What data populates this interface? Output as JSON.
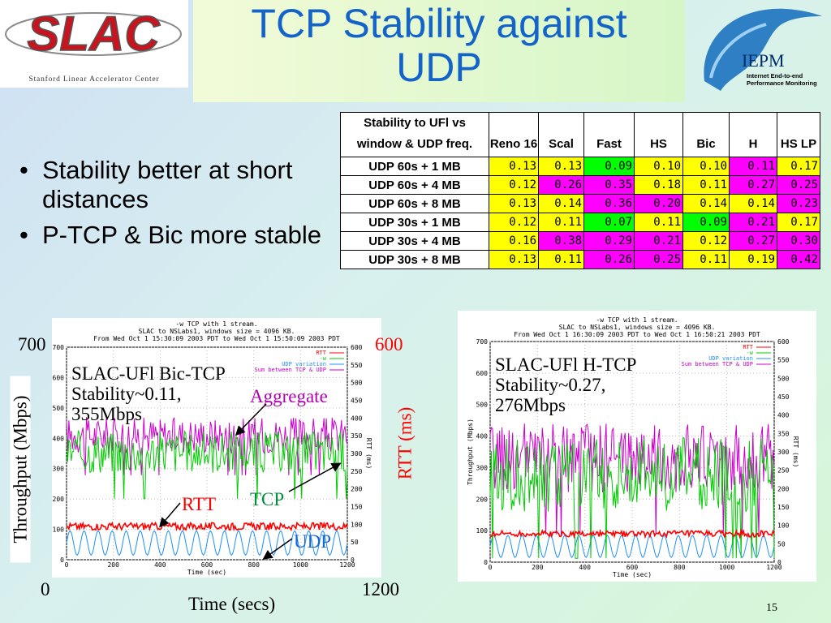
{
  "slide": {
    "title_line1": "TCP Stability against",
    "title_line2": "UDP",
    "page_number": "15",
    "org_logo": {
      "name": "SLAC",
      "subtitle": "Stanford Linear Accelerator Center"
    },
    "iepm_logo": {
      "name": "IEPM",
      "subtitle_line1": "Internet End-to-end",
      "subtitle_line2": "Performance Monitoring"
    },
    "bullets": [
      "Stability better at short distances",
      "P-TCP & Bic more stable"
    ]
  },
  "table": {
    "corner_header": "Stability to UFl vs window & UDP freq.",
    "headers": [
      "Reno 16",
      "Scal",
      "Fast",
      "HS",
      "Bic",
      "H",
      "HS LP"
    ],
    "rows": [
      {
        "label": "UDP 60s + 1 MB",
        "cells": [
          {
            "v": "0.13",
            "c": "y"
          },
          {
            "v": "0.13",
            "c": "y"
          },
          {
            "v": "0.09",
            "c": "g"
          },
          {
            "v": "0.10",
            "c": "y"
          },
          {
            "v": "0.10",
            "c": "y"
          },
          {
            "v": "0.11",
            "c": "m"
          },
          {
            "v": "0.17",
            "c": "y"
          }
        ]
      },
      {
        "label": "UDP 60s + 4 MB",
        "cells": [
          {
            "v": "0.12",
            "c": "y"
          },
          {
            "v": "0.26",
            "c": "m"
          },
          {
            "v": "0.35",
            "c": "m"
          },
          {
            "v": "0.18",
            "c": "y"
          },
          {
            "v": "0.11",
            "c": "y"
          },
          {
            "v": "0.27",
            "c": "m"
          },
          {
            "v": "0.25",
            "c": "m"
          }
        ]
      },
      {
        "label": "UDP 60s  + 8 MB",
        "cells": [
          {
            "v": "0.13",
            "c": "y"
          },
          {
            "v": "0.14",
            "c": "y"
          },
          {
            "v": "0.36",
            "c": "m"
          },
          {
            "v": "0.20",
            "c": "m"
          },
          {
            "v": "0.14",
            "c": "y"
          },
          {
            "v": "0.14",
            "c": "y"
          },
          {
            "v": "0.23",
            "c": "m"
          }
        ]
      },
      {
        "label": "UDP 30s + 1 MB",
        "cells": [
          {
            "v": "0.12",
            "c": "y"
          },
          {
            "v": "0.11",
            "c": "y"
          },
          {
            "v": "0.07",
            "c": "g"
          },
          {
            "v": "0.11",
            "c": "y"
          },
          {
            "v": "0.09",
            "c": "g"
          },
          {
            "v": "0.21",
            "c": "m"
          },
          {
            "v": "0.17",
            "c": "y"
          }
        ]
      },
      {
        "label": "UDP 30s + 4 MB",
        "cells": [
          {
            "v": "0.16",
            "c": "y"
          },
          {
            "v": "0.38",
            "c": "m"
          },
          {
            "v": "0.29",
            "c": "m"
          },
          {
            "v": "0.21",
            "c": "m"
          },
          {
            "v": "0.12",
            "c": "y"
          },
          {
            "v": "0.27",
            "c": "m"
          },
          {
            "v": "0.30",
            "c": "m"
          }
        ]
      },
      {
        "label": "UDP 30s + 8 MB",
        "cells": [
          {
            "v": "0.13",
            "c": "y"
          },
          {
            "v": "0.11",
            "c": "y"
          },
          {
            "v": "0.26",
            "c": "m"
          },
          {
            "v": "0.25",
            "c": "m"
          },
          {
            "v": "0.11",
            "c": "y"
          },
          {
            "v": "0.19",
            "c": "y"
          },
          {
            "v": "0.42",
            "c": "m"
          }
        ]
      }
    ]
  },
  "plot1": {
    "header": [
      "-w TCP with 1 stream.",
      "SLAC to NSLabs1, windows size = 4096 KB.",
      "From Wed Oct  1 15:30:09 2003 PDT to Wed Oct  1 15:50:09 2003 PDT"
    ],
    "legend": [
      "RTT",
      "-w",
      "UDP variation",
      "Sum between TCP & UDP"
    ],
    "ylabel": "Throughput (Mbps)",
    "y2label": "RTT (ms)",
    "xlabel": "Time (sec)",
    "overlay_title": "SLAC-UFl Bic-TCP",
    "overlay_stability": "Stability~0.11,",
    "overlay_rate": "355Mbps",
    "ann_aggregate": "Aggregate",
    "ann_rtt": "RTT",
    "ann_tcp": "TCP",
    "ann_udp": "UDP",
    "outer_y_max": "700",
    "outer_y2_max": "600",
    "outer_x_min": "0",
    "outer_x_max": "1200",
    "outer_ylabel": "Throughput (Mbps)",
    "outer_y2label": "RTT (ms)",
    "outer_xlabel": "Time (secs)"
  },
  "plot2": {
    "header": [
      "-w TCP with 1 stream.",
      "SLAC to NSLabs1, windows size = 4096 KB.",
      "From Wed Oct  1 16:30:09 2003 PDT to Wed Oct  1 16:50:21 2003 PDT"
    ],
    "legend": [
      "RTT",
      "-w",
      "UDP variation",
      "Sum between TCP & UDP"
    ],
    "ylabel": "Throughput (Mbps)",
    "y2label": "RTT (ms)",
    "xlabel": "Time (sec)",
    "overlay_title": "SLAC-UFl H-TCP",
    "overlay_stability": "Stability~0.27,",
    "overlay_rate": "276Mbps"
  },
  "chart_data": [
    {
      "type": "line",
      "title": "-w TCP with 1 stream.",
      "xlabel": "Time (sec)",
      "ylabel": "Throughput (Mbps)",
      "y2label": "RTT (ms)",
      "xlim": [
        0,
        1200
      ],
      "ylim": [
        0,
        700
      ],
      "y2lim": [
        0,
        600
      ],
      "xticks": [
        0,
        200,
        400,
        600,
        800,
        1000,
        1200
      ],
      "yticks": [
        0,
        100,
        200,
        300,
        400,
        500,
        600,
        700
      ],
      "y2ticks": [
        0,
        50,
        100,
        150,
        200,
        250,
        300,
        350,
        400,
        450,
        500,
        550,
        600
      ],
      "series": [
        {
          "name": "RTT",
          "color": "#ff0000",
          "mean": 110,
          "jitter": 12
        },
        {
          "name": "-w",
          "color": "#00cc00",
          "mean": 355,
          "jitter": 70
        },
        {
          "name": "UDP variation",
          "color": "#1e90ff",
          "mean": 55,
          "amplitude": 40,
          "period_sec": 60
        },
        {
          "name": "Sum between TCP & UDP",
          "color": "#cc00cc",
          "mean": 410,
          "jitter": 60
        }
      ]
    },
    {
      "type": "line",
      "title": "-w TCP with 1 stream.",
      "xlabel": "Time (sec)",
      "ylabel": "Throughput (Mbps)",
      "y2label": "RTT (ms)",
      "xlim": [
        0,
        1200
      ],
      "ylim": [
        0,
        700
      ],
      "y2lim": [
        0,
        600
      ],
      "xticks": [
        0,
        200,
        400,
        600,
        800,
        1000,
        1200
      ],
      "yticks": [
        0,
        100,
        200,
        300,
        400,
        500,
        600,
        700
      ],
      "y2ticks": [
        0,
        50,
        100,
        150,
        200,
        250,
        300,
        350,
        400,
        450,
        500,
        550,
        600
      ],
      "series": [
        {
          "name": "RTT",
          "color": "#ff0000",
          "mean": 90,
          "jitter": 10
        },
        {
          "name": "-w",
          "color": "#00cc00",
          "mean": 276,
          "jitter": 120
        },
        {
          "name": "UDP variation",
          "color": "#1e90ff",
          "mean": 50,
          "amplitude": 35,
          "period_sec": 60
        },
        {
          "name": "Sum between TCP & UDP",
          "color": "#cc00cc",
          "mean": 330,
          "jitter": 110
        }
      ]
    }
  ]
}
